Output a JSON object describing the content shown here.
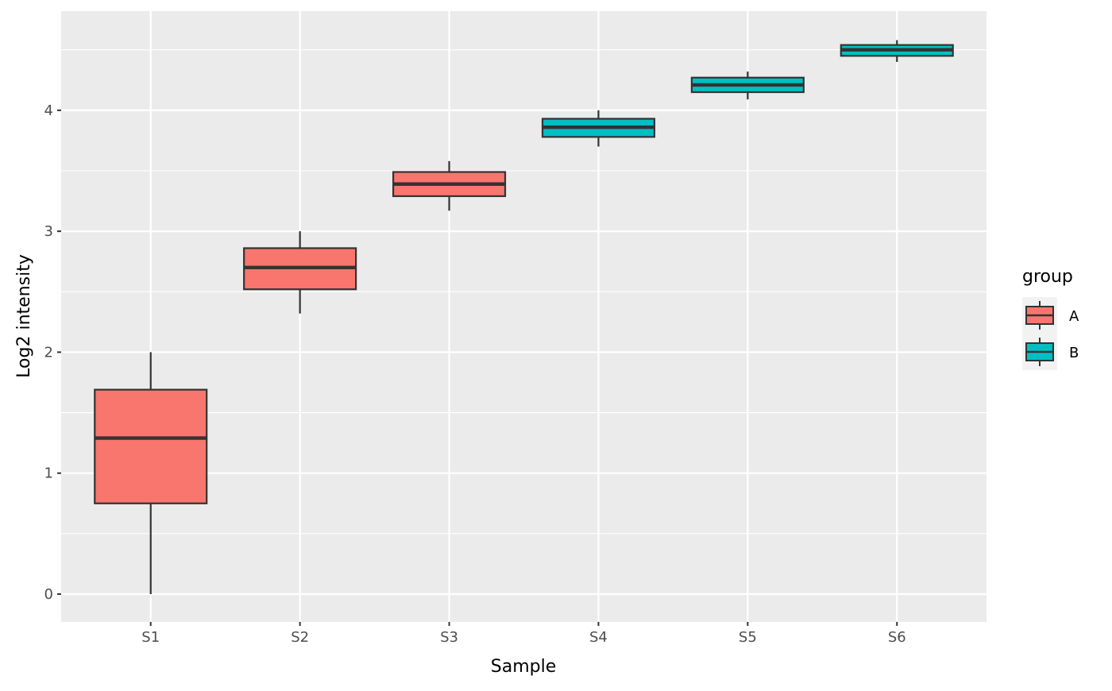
{
  "chart_data": {
    "type": "boxplot",
    "title": "",
    "xlabel": "Sample",
    "ylabel": "Log2 intensity",
    "ylim": [
      -0.23,
      4.82
    ],
    "yticks": [
      0,
      1,
      2,
      3,
      4
    ],
    "grid": true,
    "categories": [
      "S1",
      "S2",
      "S3",
      "S4",
      "S5",
      "S6"
    ],
    "groups": [
      "A",
      "A",
      "A",
      "B",
      "B",
      "B"
    ],
    "boxes": [
      {
        "min": 0.0,
        "q1": 0.75,
        "median": 1.29,
        "q3": 1.69,
        "max": 2.0
      },
      {
        "min": 2.32,
        "q1": 2.52,
        "median": 2.7,
        "q3": 2.86,
        "max": 3.0
      },
      {
        "min": 3.17,
        "q1": 3.29,
        "median": 3.39,
        "q3": 3.49,
        "max": 3.58
      },
      {
        "min": 3.7,
        "q1": 3.78,
        "median": 3.86,
        "q3": 3.93,
        "max": 4.0
      },
      {
        "min": 4.09,
        "q1": 4.15,
        "median": 4.21,
        "q3": 4.27,
        "max": 4.32
      },
      {
        "min": 4.4,
        "q1": 4.45,
        "median": 4.5,
        "q3": 4.54,
        "max": 4.58
      }
    ],
    "legend": {
      "title": "group",
      "position": "right",
      "entries": [
        {
          "label": "A",
          "color": "#F8766D"
        },
        {
          "label": "B",
          "color": "#00BFC4"
        }
      ]
    }
  }
}
